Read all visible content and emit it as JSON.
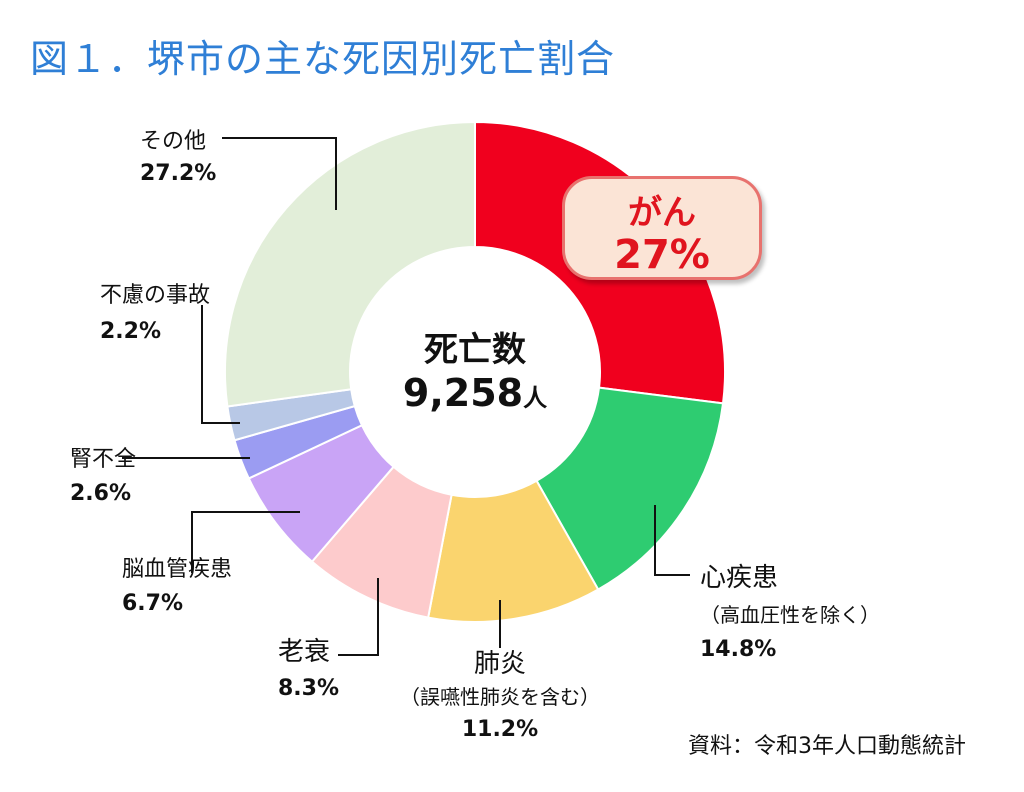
{
  "title": "図１．堺市の主な死因別死亡割合",
  "center": {
    "label": "死亡数",
    "number": "9,258",
    "unit": "人"
  },
  "source": "資料：令和3年人口動態統計",
  "chart_data": {
    "type": "pie",
    "title": "図１．堺市の主な死因別死亡割合",
    "slices": [
      {
        "name": "がん",
        "value": 27,
        "value_label": "27%",
        "color": "#f0001e"
      },
      {
        "name": "心疾患",
        "note": "（高血圧性を除く）",
        "value": 14.8,
        "value_label": "14.8%",
        "color": "#2ecc71"
      },
      {
        "name": "肺炎",
        "note": "（誤嚥性肺炎を含む）",
        "value": 11.2,
        "value_label": "11.2%",
        "color": "#fad46e"
      },
      {
        "name": "老衰",
        "value": 8.3,
        "value_label": "8.3%",
        "color": "#fdcbcc"
      },
      {
        "name": "脳血管疾患",
        "value": 6.7,
        "value_label": "6.7%",
        "color": "#c9a4f6"
      },
      {
        "name": "腎不全",
        "value": 2.6,
        "value_label": "2.6%",
        "color": "#9b9cf2"
      },
      {
        "name": "不慮の事故",
        "value": 2.2,
        "value_label": "2.2%",
        "color": "#b8c8e6"
      },
      {
        "name": "その他",
        "value": 27.2,
        "value_label": "27.2%",
        "color": "#e2eed9"
      }
    ]
  }
}
